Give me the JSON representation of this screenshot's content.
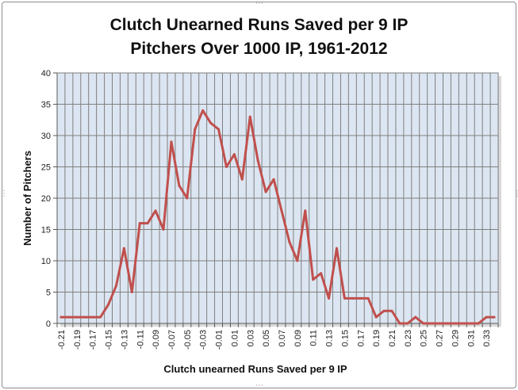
{
  "chart_data": {
    "type": "line",
    "title": [
      "Clutch Unearned Runs Saved per 9 IP",
      "Pitchers Over 1000 IP, 1961-2012"
    ],
    "xlabel": "Clutch unearned Runs Saved per 9 IP",
    "ylabel": "Number of Pitchers",
    "ylim": [
      0,
      40
    ],
    "yticks": [
      0,
      5,
      10,
      15,
      20,
      25,
      30,
      35,
      40
    ],
    "grid": true,
    "legend": "none",
    "x": [
      -0.21,
      -0.2,
      -0.19,
      -0.18,
      -0.17,
      -0.16,
      -0.15,
      -0.14,
      -0.13,
      -0.12,
      -0.11,
      -0.1,
      -0.09,
      -0.08,
      -0.07,
      -0.06,
      -0.05,
      -0.04,
      -0.03,
      -0.02,
      -0.01,
      0.0,
      0.01,
      0.02,
      0.03,
      0.04,
      0.05,
      0.06,
      0.07,
      0.08,
      0.09,
      0.1,
      0.11,
      0.12,
      0.13,
      0.14,
      0.15,
      0.16,
      0.17,
      0.18,
      0.19,
      0.2,
      0.21,
      0.22,
      0.23,
      0.24,
      0.25,
      0.26,
      0.27,
      0.28,
      0.29,
      0.3,
      0.31,
      0.32,
      0.33,
      0.34
    ],
    "xticklabels": [
      "-0.21",
      "-0.19",
      "-0.17",
      "-0.15",
      "-0.13",
      "-0.11",
      "-0.09",
      "-0.07",
      "-0.05",
      "-0.03",
      "-0.01",
      "0.01",
      "0.03",
      "0.05",
      "0.07",
      "0.09",
      "0.11",
      "0.13",
      "0.15",
      "0.17",
      "0.19",
      "0.21",
      "0.23",
      "0.25",
      "0.27",
      "0.29",
      "0.31",
      "0.33"
    ],
    "series": [
      {
        "values": [
          1,
          1,
          1,
          1,
          1,
          1,
          3,
          6,
          12,
          5,
          16,
          16,
          18,
          15,
          29,
          22,
          20,
          31,
          34,
          32,
          31,
          25,
          27,
          23,
          33,
          26,
          21,
          23,
          18,
          13,
          10,
          18,
          7,
          8,
          4,
          12,
          4,
          4,
          4,
          4,
          1,
          2,
          2,
          0,
          0,
          1,
          0,
          0,
          0,
          0,
          0,
          0,
          0,
          0,
          1,
          1
        ],
        "color": "#c0504d"
      }
    ],
    "plot_background": "#dce6f2",
    "gridline_color": "#7f7f7f"
  }
}
